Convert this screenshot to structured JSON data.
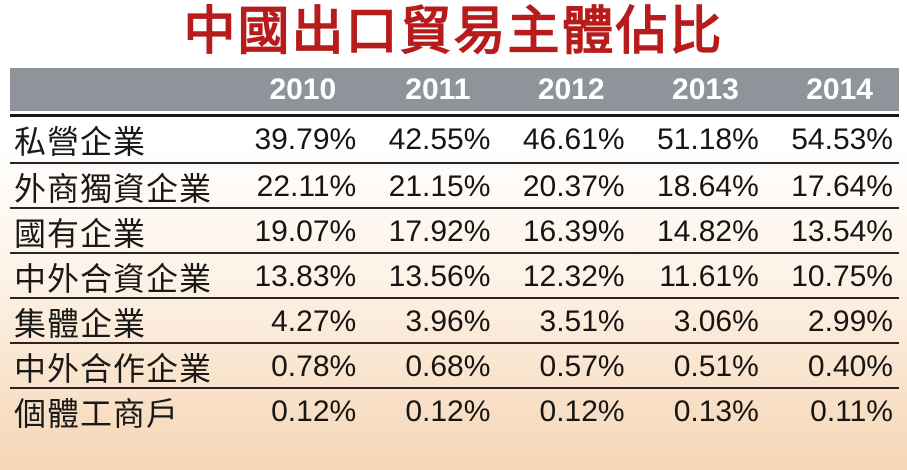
{
  "title": "中國出口貿易主體佔比",
  "colors": {
    "title_red": "#b81b1b",
    "header_gray": "#8f949b",
    "header_text": "#ffffff",
    "divider_dark": "#2a2424",
    "background_bottom_peach": "#f5d6b6"
  },
  "chart_data": {
    "type": "table",
    "title": "中國出口貿易主體佔比",
    "columns": [
      "",
      "2010",
      "2011",
      "2012",
      "2013",
      "2014"
    ],
    "rows": [
      {
        "label": "私營企業",
        "values": [
          "39.79%",
          "42.55%",
          "46.61%",
          "51.18%",
          "54.53%"
        ]
      },
      {
        "label": "外商獨資企業",
        "values": [
          "22.11%",
          "21.15%",
          "20.37%",
          "18.64%",
          "17.64%"
        ]
      },
      {
        "label": "國有企業",
        "values": [
          "19.07%",
          "17.92%",
          "16.39%",
          "14.82%",
          "13.54%"
        ]
      },
      {
        "label": "中外合資企業",
        "values": [
          "13.83%",
          "13.56%",
          "12.32%",
          "11.61%",
          "10.75%"
        ]
      },
      {
        "label": "集體企業",
        "values": [
          "4.27%",
          "3.96%",
          "3.51%",
          "3.06%",
          "2.99%"
        ]
      },
      {
        "label": "中外合作企業",
        "values": [
          "0.78%",
          "0.68%",
          "0.57%",
          "0.51%",
          "0.40%"
        ]
      },
      {
        "label": "個體工商戶",
        "values": [
          "0.12%",
          "0.12%",
          "0.12%",
          "0.13%",
          "0.11%"
        ]
      }
    ]
  }
}
